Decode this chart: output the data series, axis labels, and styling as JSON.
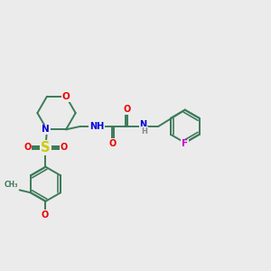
{
  "bg_color": "#ebebeb",
  "bond_color": "#3d7a5a",
  "bond_width": 1.4,
  "atom_colors": {
    "N": "#0000dd",
    "O": "#ee0000",
    "S": "#cccc00",
    "F": "#cc00cc",
    "H": "#888888"
  },
  "font_size": 7.5,
  "xlim": [
    0.0,
    10.0
  ],
  "ylim": [
    2.5,
    8.5
  ]
}
